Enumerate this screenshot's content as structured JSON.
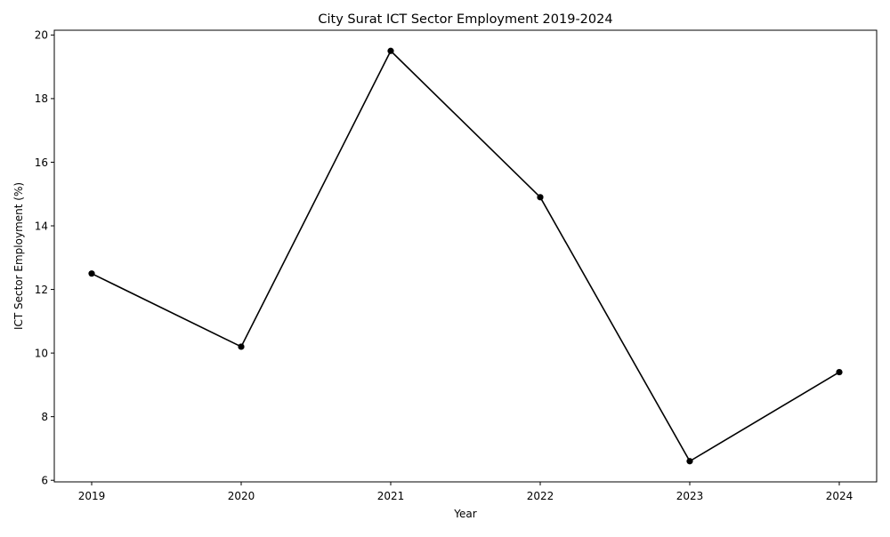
{
  "chart_data": {
    "type": "line",
    "title": "City Surat ICT Sector Employment 2019-2024",
    "xlabel": "Year",
    "ylabel": "ICT Sector Employment (%)",
    "x": [
      2019,
      2020,
      2021,
      2022,
      2023,
      2024
    ],
    "x_tick_labels": [
      "2019",
      "2020",
      "2021",
      "2022",
      "2023",
      "2024"
    ],
    "series": [
      {
        "values": [
          12.5,
          10.2,
          19.5,
          14.9,
          6.6,
          9.4
        ]
      }
    ],
    "y_ticks": [
      6,
      8,
      10,
      12,
      14,
      16,
      18,
      20
    ],
    "y_tick_labels": [
      "6",
      "8",
      "10",
      "12",
      "14",
      "16",
      "18",
      "20"
    ],
    "xlim": [
      2018.75,
      2024.25
    ],
    "ylim": [
      5.95,
      20.15
    ],
    "grid": false,
    "line_color": "#000000",
    "marker_color": "#000000",
    "marker": "circle"
  }
}
